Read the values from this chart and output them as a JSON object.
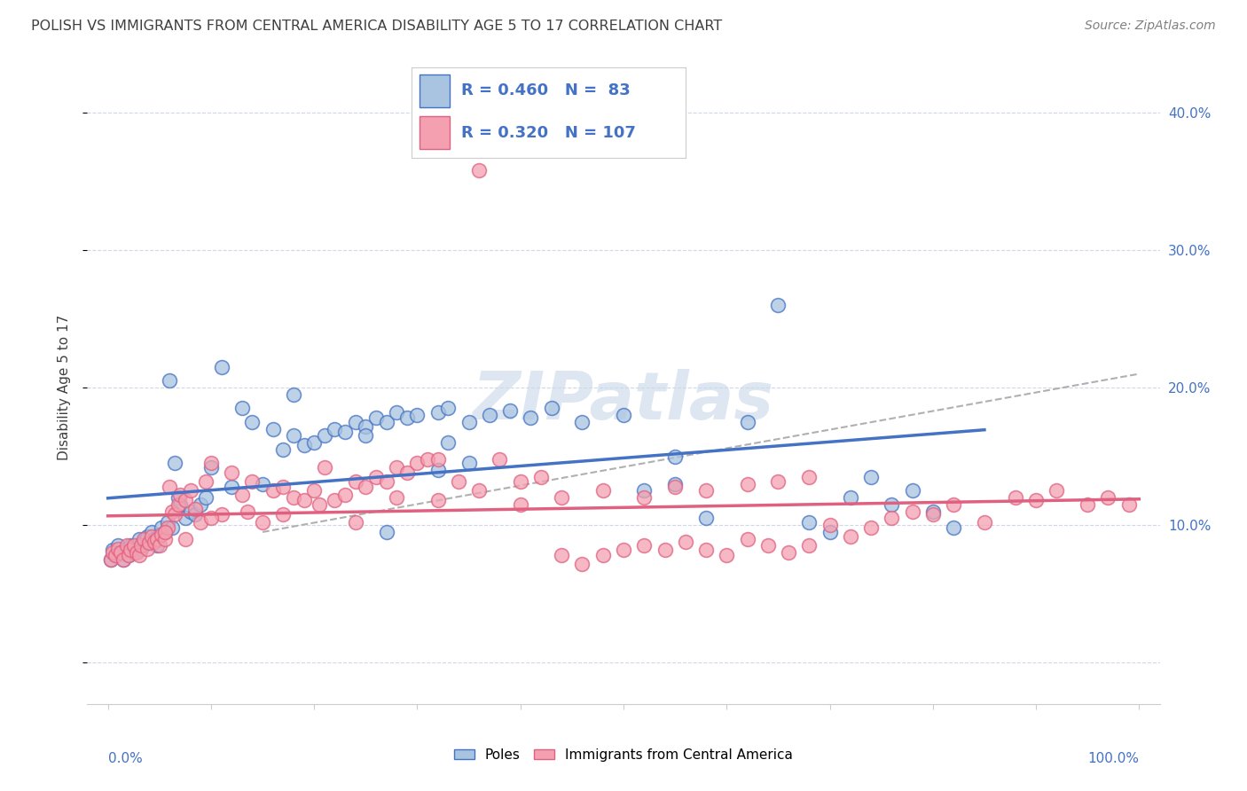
{
  "title": "POLISH VS IMMIGRANTS FROM CENTRAL AMERICA DISABILITY AGE 5 TO 17 CORRELATION CHART",
  "source": "Source: ZipAtlas.com",
  "ylabel": "Disability Age 5 to 17",
  "blue_R": 0.46,
  "blue_N": 83,
  "pink_R": 0.32,
  "pink_N": 107,
  "blue_color": "#a8c4e0",
  "pink_color": "#f4a0b0",
  "blue_line_color": "#4472c4",
  "pink_line_color": "#e06080",
  "dashed_line_color": "#b0b0b0",
  "legend_text_color": "#4472c4",
  "title_color": "#404040",
  "source_color": "#808080",
  "ylabel_color": "#404040",
  "tick_color": "#4472c4",
  "grid_color": "#d0d8e8",
  "background_color": "#ffffff",
  "watermark": "ZIPatlas",
  "watermark_color": "#c8d8e8",
  "blue_points_x": [
    0.3,
    0.5,
    0.8,
    1.0,
    1.2,
    1.5,
    1.8,
    2.0,
    2.2,
    2.5,
    2.8,
    3.0,
    3.2,
    3.5,
    3.8,
    4.0,
    4.2,
    4.5,
    4.8,
    5.0,
    5.2,
    5.5,
    5.8,
    6.0,
    6.2,
    6.5,
    6.8,
    7.0,
    7.5,
    8.0,
    8.5,
    9.0,
    9.5,
    10.0,
    11.0,
    12.0,
    13.0,
    14.0,
    15.0,
    16.0,
    17.0,
    18.0,
    19.0,
    20.0,
    21.0,
    22.0,
    23.0,
    24.0,
    25.0,
    26.0,
    27.0,
    28.0,
    29.0,
    30.0,
    32.0,
    33.0,
    35.0,
    37.0,
    39.0,
    41.0,
    43.0,
    46.0,
    50.0,
    52.0,
    55.0,
    58.0,
    62.0,
    65.0,
    68.0,
    70.0,
    72.0,
    74.0,
    76.0,
    78.0,
    80.0,
    82.0,
    25.0,
    27.0,
    32.0,
    55.0,
    18.0,
    33.0,
    35.0
  ],
  "blue_points_y": [
    7.5,
    8.2,
    7.8,
    8.5,
    8.0,
    7.5,
    8.3,
    7.8,
    8.5,
    8.0,
    8.5,
    9.0,
    8.3,
    8.8,
    9.2,
    8.7,
    9.5,
    9.0,
    8.5,
    9.3,
    9.8,
    9.5,
    10.2,
    20.5,
    9.8,
    14.5,
    12.0,
    11.5,
    10.5,
    11.0,
    10.8,
    11.5,
    12.0,
    14.2,
    21.5,
    12.8,
    18.5,
    17.5,
    13.0,
    17.0,
    15.5,
    16.5,
    15.8,
    16.0,
    16.5,
    17.0,
    16.8,
    17.5,
    17.2,
    17.8,
    17.5,
    18.2,
    17.8,
    18.0,
    18.2,
    18.5,
    17.5,
    18.0,
    18.3,
    17.8,
    18.5,
    17.5,
    18.0,
    12.5,
    13.0,
    10.5,
    17.5,
    26.0,
    10.2,
    9.5,
    12.0,
    13.5,
    11.5,
    12.5,
    11.0,
    9.8,
    16.5,
    9.5,
    14.0,
    15.0,
    19.5,
    16.0,
    14.5
  ],
  "pink_points_x": [
    0.3,
    0.5,
    0.7,
    1.0,
    1.2,
    1.5,
    1.8,
    2.0,
    2.2,
    2.5,
    2.8,
    3.0,
    3.2,
    3.5,
    3.8,
    4.0,
    4.2,
    4.5,
    4.8,
    5.0,
    5.2,
    5.5,
    5.8,
    6.0,
    6.2,
    6.5,
    6.8,
    7.0,
    7.5,
    8.0,
    8.5,
    9.0,
    9.5,
    10.0,
    11.0,
    12.0,
    13.0,
    14.0,
    15.0,
    16.0,
    17.0,
    18.0,
    19.0,
    20.0,
    21.0,
    22.0,
    23.0,
    24.0,
    25.0,
    26.0,
    27.0,
    28.0,
    29.0,
    30.0,
    31.0,
    32.0,
    34.0,
    36.0,
    38.0,
    40.0,
    42.0,
    44.0,
    46.0,
    48.0,
    50.0,
    52.0,
    54.0,
    56.0,
    58.0,
    60.0,
    62.0,
    64.0,
    66.0,
    68.0,
    70.0,
    72.0,
    74.0,
    76.0,
    78.0,
    80.0,
    82.0,
    85.0,
    88.0,
    90.0,
    92.0,
    95.0,
    97.0,
    99.0,
    5.5,
    7.5,
    10.0,
    13.5,
    17.0,
    20.5,
    24.0,
    28.0,
    32.0,
    36.0,
    40.0,
    44.0,
    48.0,
    52.0,
    55.0,
    58.0,
    62.0,
    65.0,
    68.0
  ],
  "pink_points_y": [
    7.5,
    8.0,
    7.8,
    8.3,
    8.0,
    7.5,
    8.5,
    7.8,
    8.2,
    8.5,
    8.0,
    7.8,
    8.5,
    9.0,
    8.3,
    8.7,
    9.2,
    8.8,
    9.0,
    8.5,
    9.3,
    9.0,
    9.8,
    12.8,
    11.0,
    10.8,
    11.5,
    12.2,
    11.8,
    12.5,
    11.2,
    10.2,
    13.2,
    14.5,
    10.8,
    13.8,
    12.2,
    13.2,
    10.2,
    12.5,
    12.8,
    12.0,
    11.8,
    12.5,
    14.2,
    11.8,
    12.2,
    13.2,
    12.8,
    13.5,
    13.2,
    14.2,
    13.8,
    14.5,
    14.8,
    14.8,
    13.2,
    35.8,
    14.8,
    13.2,
    13.5,
    7.8,
    7.2,
    7.8,
    8.2,
    8.5,
    8.2,
    8.8,
    8.2,
    7.8,
    9.0,
    8.5,
    8.0,
    8.5,
    10.0,
    9.2,
    9.8,
    10.5,
    11.0,
    10.8,
    11.5,
    10.2,
    12.0,
    11.8,
    12.5,
    11.5,
    12.0,
    11.5,
    9.5,
    9.0,
    10.5,
    11.0,
    10.8,
    11.5,
    10.2,
    12.0,
    11.8,
    12.5,
    11.5,
    12.0,
    12.5,
    12.0,
    12.8,
    12.5,
    13.0,
    13.2,
    13.5
  ]
}
